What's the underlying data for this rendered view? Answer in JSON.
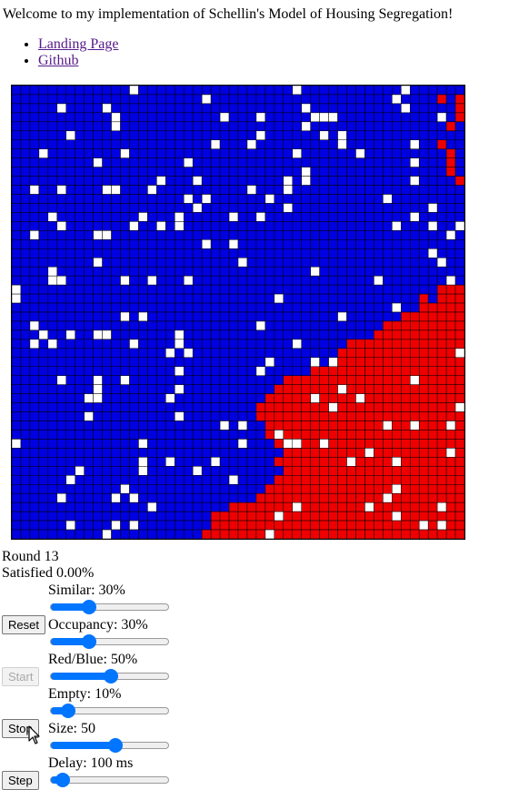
{
  "header": {
    "welcome": "Welcome to my implementation of Schellin's Model of Housing Segregation!"
  },
  "links": [
    {
      "label": "Landing Page"
    },
    {
      "label": "Github"
    }
  ],
  "stats": {
    "round": "Round 13",
    "satisfied": "Satisfied 0.00%"
  },
  "controls": {
    "similar": {
      "label": "Similar: 30%",
      "fraction": 0.3
    },
    "occupancy": {
      "label": "Occupancy: 30%",
      "fraction": 0.3
    },
    "red_blue": {
      "label": "Red/Blue: 50%",
      "fraction": 0.5
    },
    "empty": {
      "label": "Empty: 10%",
      "fraction": 0.1
    },
    "size": {
      "label": "Size: 50",
      "fraction": 0.55
    },
    "delay": {
      "label": "Delay: 100 ms",
      "fraction": 0.05
    }
  },
  "buttons": {
    "reset": "Reset",
    "start": "Start",
    "stop": "Stop",
    "step": "Step"
  },
  "colors": {
    "red": "#ee0000",
    "blue": "#0000e0",
    "empty": "#ffffff",
    "slider_accent": "#0075ff"
  },
  "grid_size": 50
}
